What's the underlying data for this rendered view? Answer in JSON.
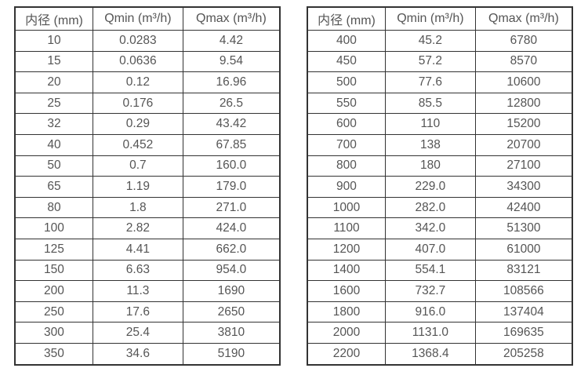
{
  "colors": {
    "background": "#ffffff",
    "border": "#333333",
    "text": "#555555"
  },
  "chart_data": [
    {
      "type": "table",
      "title": "",
      "columns": [
        "内径 (mm)",
        "Qmin (m³/h)",
        "Qmax (m³/h)"
      ],
      "rows": [
        [
          "10",
          "0.0283",
          "4.42"
        ],
        [
          "15",
          "0.0636",
          "9.54"
        ],
        [
          "20",
          "0.12",
          "16.96"
        ],
        [
          "25",
          "0.176",
          "26.5"
        ],
        [
          "32",
          "0.29",
          "43.42"
        ],
        [
          "40",
          "0.452",
          "67.85"
        ],
        [
          "50",
          "0.7",
          "160.0"
        ],
        [
          "65",
          "1.19",
          "179.0"
        ],
        [
          "80",
          "1.8",
          "271.0"
        ],
        [
          "100",
          "2.82",
          "424.0"
        ],
        [
          "125",
          "4.41",
          "662.0"
        ],
        [
          "150",
          "6.63",
          "954.0"
        ],
        [
          "200",
          "11.3",
          "1690"
        ],
        [
          "250",
          "17.6",
          "2650"
        ],
        [
          "300",
          "25.4",
          "3810"
        ],
        [
          "350",
          "34.6",
          "5190"
        ]
      ]
    },
    {
      "type": "table",
      "title": "",
      "columns": [
        "内径 (mm)",
        "Qmin (m³/h)",
        "Qmax (m³/h)"
      ],
      "rows": [
        [
          "400",
          "45.2",
          "6780"
        ],
        [
          "450",
          "57.2",
          "8570"
        ],
        [
          "500",
          "77.6",
          "10600"
        ],
        [
          "550",
          "85.5",
          "12800"
        ],
        [
          "600",
          "110",
          "15200"
        ],
        [
          "700",
          "138",
          "20700"
        ],
        [
          "800",
          "180",
          "27100"
        ],
        [
          "900",
          "229.0",
          "34300"
        ],
        [
          "1000",
          "282.0",
          "42400"
        ],
        [
          "1100",
          "342.0",
          "51300"
        ],
        [
          "1200",
          "407.0",
          "61000"
        ],
        [
          "1400",
          "554.1",
          "83121"
        ],
        [
          "1600",
          "732.7",
          "108566"
        ],
        [
          "1800",
          "916.0",
          "137404"
        ],
        [
          "2000",
          "1131.0",
          "169635"
        ],
        [
          "2200",
          "1368.4",
          "205258"
        ]
      ]
    }
  ]
}
